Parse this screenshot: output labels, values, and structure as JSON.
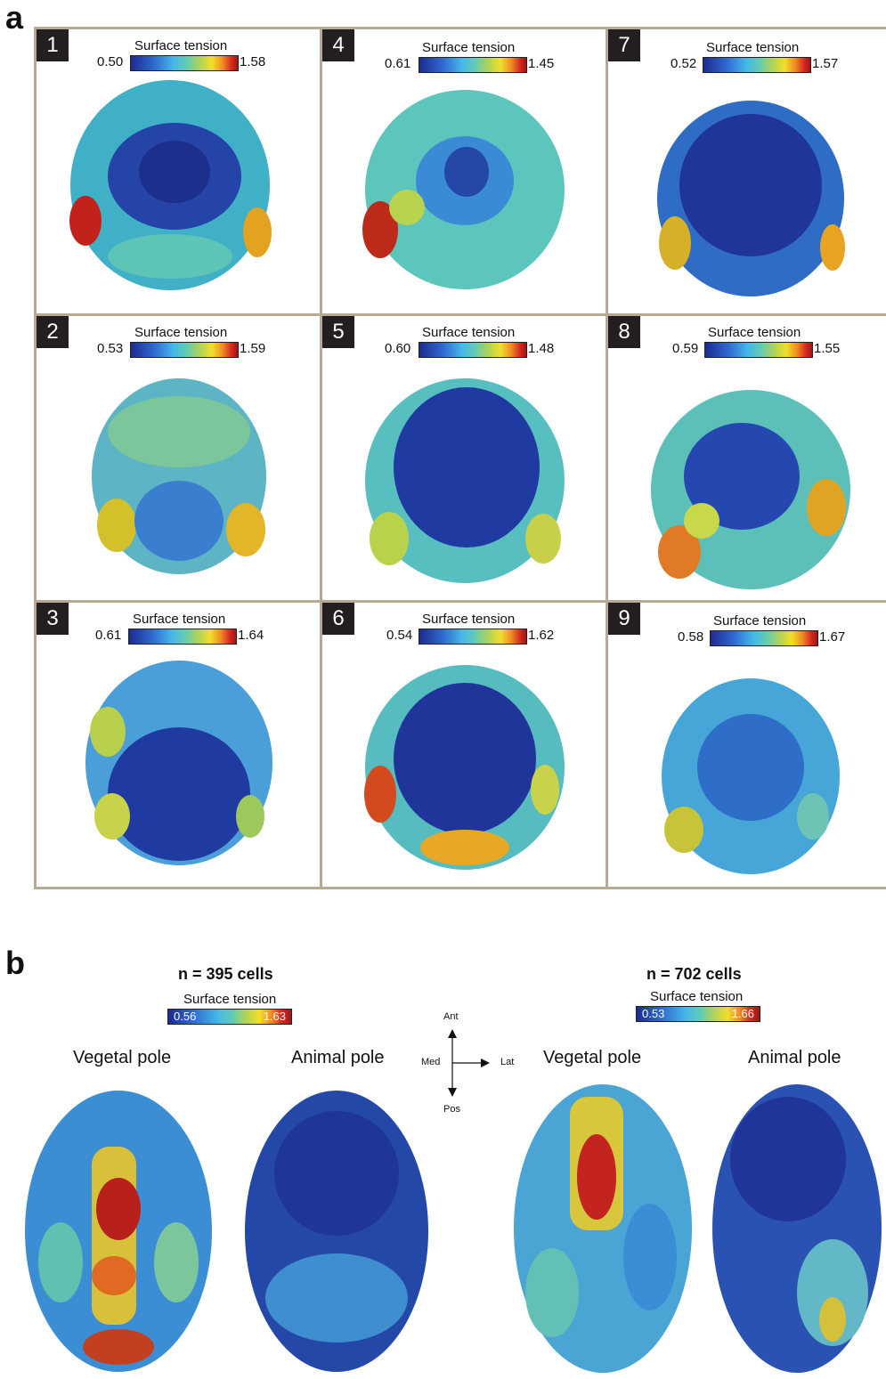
{
  "panel_a": {
    "letter": "a",
    "colorbar_title": "Surface tension",
    "cells": [
      {
        "num": "1",
        "min": "0.50",
        "max": "1.58"
      },
      {
        "num": "4",
        "min": "0.61",
        "max": "1.45"
      },
      {
        "num": "7",
        "min": "0.52",
        "max": "1.57"
      },
      {
        "num": "2",
        "min": "0.53",
        "max": "1.59"
      },
      {
        "num": "5",
        "min": "0.60",
        "max": "1.48"
      },
      {
        "num": "8",
        "min": "0.59",
        "max": "1.55"
      },
      {
        "num": "3",
        "min": "0.61",
        "max": "1.64"
      },
      {
        "num": "6",
        "min": "0.54",
        "max": "1.62"
      },
      {
        "num": "9",
        "min": "0.58",
        "max": "1.67"
      }
    ]
  },
  "panel_b": {
    "letter": "b",
    "colorbar_title": "Surface tension",
    "left": {
      "n_label": "n = 395 cells",
      "min": "0.56",
      "max": "1.63",
      "vegetal": "Vegetal pole",
      "animal": "Animal pole"
    },
    "right": {
      "n_label": "n = 702 cells",
      "min": "0.53",
      "max": "1.66",
      "vegetal": "Vegetal pole",
      "animal": "Animal pole"
    },
    "axes": {
      "up": "Ant",
      "down": "Pos",
      "left": "Med",
      "right": "Lat"
    }
  }
}
